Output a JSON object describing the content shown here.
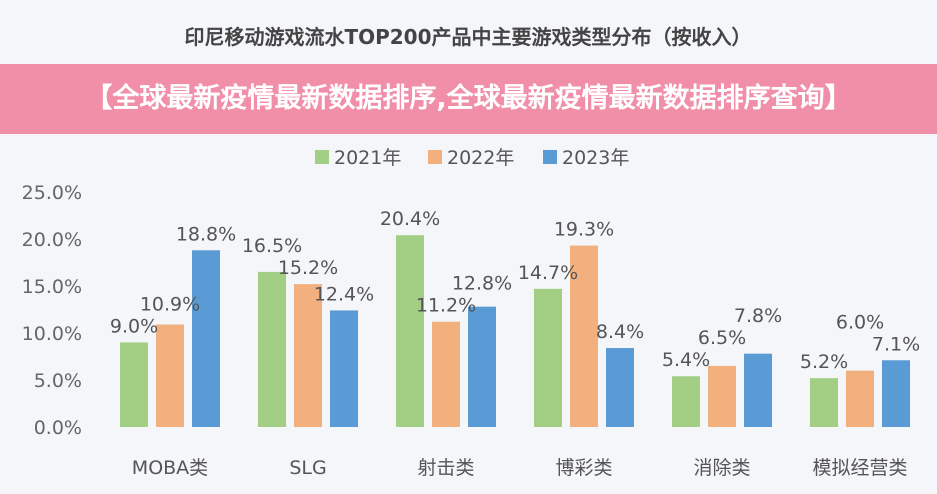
{
  "chart_data": {
    "type": "bar",
    "title": "印尼移动游戏流水TOP200产品中主要游戏类型分布（按收入）",
    "categories": [
      "MOBA类",
      "SLG",
      "射击类",
      "博彩类",
      "消除类",
      "模拟经营类"
    ],
    "series": [
      {
        "name": "2021年",
        "color": "#a3cf84",
        "values": [
          9.0,
          16.5,
          20.4,
          14.7,
          5.4,
          5.2
        ]
      },
      {
        "name": "2022年",
        "color": "#f2b07f",
        "values": [
          10.9,
          15.2,
          11.2,
          19.3,
          6.5,
          6.0
        ]
      },
      {
        "name": "2023年",
        "color": "#5b9bd5",
        "values": [
          18.8,
          12.4,
          12.8,
          8.4,
          7.8,
          7.1
        ]
      }
    ],
    "ylim": [
      0,
      25
    ],
    "yticks": [
      "0.0%",
      "5.0%",
      "10.0%",
      "15.0%",
      "20.0%",
      "25.0%"
    ],
    "legend": "top",
    "grid": false
  },
  "banner": {
    "text": "【全球最新疫情最新数据排序,全球最新疫情最新数据排序查询】"
  }
}
